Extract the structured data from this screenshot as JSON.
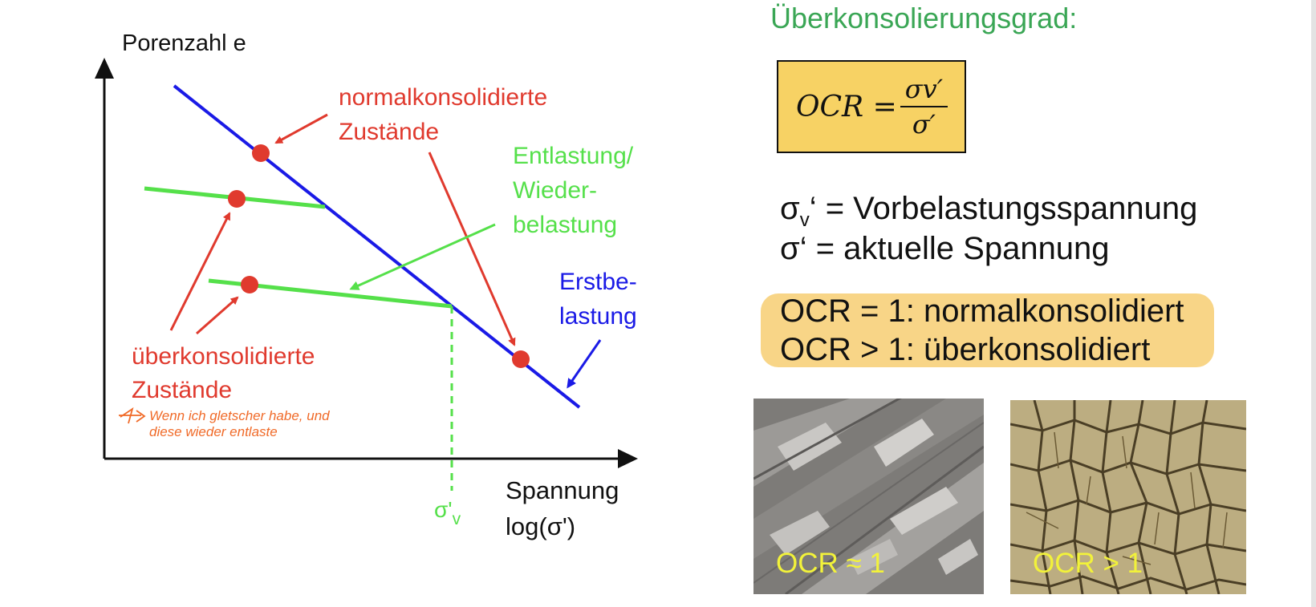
{
  "diagram": {
    "y_axis_label": "Porenzahl e",
    "x_axis_label_line1": "Spannung",
    "x_axis_label_line2": "log(σ')",
    "label_nc_line1": "normalkonsolidierte",
    "label_nc_line2": "Zustände",
    "label_unload_line1": "Entlastung/",
    "label_unload_line2": "Wieder-",
    "label_unload_line3": "belastung",
    "label_first_line1": "Erstbe-",
    "label_first_line2": "lastung",
    "label_oc_line1": "überkonsolidierte",
    "label_oc_line2": "Zustände",
    "sigma_v_label": "σ'",
    "sigma_v_sub": "v",
    "handwritten_note_line1": "Wenn ich gletscher habe, und",
    "handwritten_note_line2": "diese wieder entlaste",
    "colors": {
      "first_loading": "#1a1ae6",
      "unloading": "#55e04a",
      "points_arrows": "#e03a2e",
      "axis": "#111111"
    }
  },
  "right_panel": {
    "title": "Überkonsolierungsgrad:",
    "formula_lhs": "OCR = ",
    "formula_num": "σv′",
    "formula_den": "σ′",
    "def1_symbol": "σ",
    "def1_sub": "v",
    "def1_text": "‘ = Vorbelastungsspannung",
    "def2_symbol": "σ",
    "def2_text": "‘ = aktuelle Spannung",
    "ocr_line1": "OCR = 1: normalkonsolidiert",
    "ocr_line2": "OCR > 1: überkonsolidiert",
    "photo1_caption": "OCR ≈ 1",
    "photo2_caption": "OCR > 1",
    "highlight_color": "#f7d07a",
    "caption_color": "#f2f23a"
  }
}
